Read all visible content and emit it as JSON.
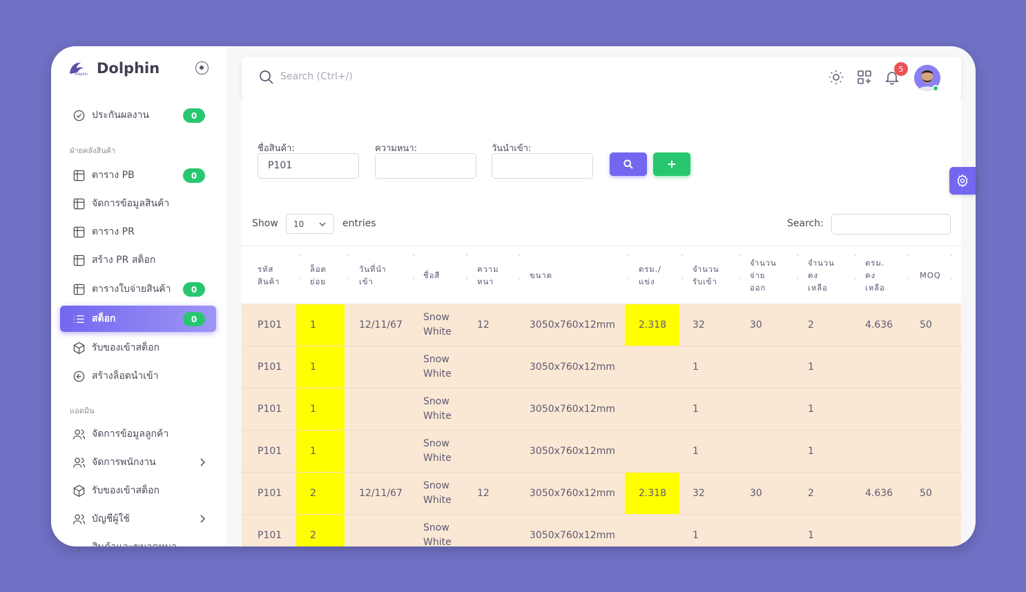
{
  "brand": {
    "name": "Dolphin",
    "logo_text": "Dolphin"
  },
  "sidebar": {
    "items": [
      {
        "label": "ประกันผลงาน",
        "badge": "0",
        "icon": "check-circle-icon"
      },
      {
        "label": "ตาราง PB",
        "badge": "0",
        "icon": "table-icon"
      },
      {
        "label": "จัดการข้อมูลสินค้า",
        "icon": "table-icon"
      },
      {
        "label": "ตาราง PR",
        "icon": "table-icon"
      },
      {
        "label": "สร้าง PR สต็อก",
        "icon": "table-icon"
      },
      {
        "label": "ตารางใบจ่ายสินค้า",
        "badge": "0",
        "icon": "table-icon"
      },
      {
        "label": "สต็อก",
        "badge": "0",
        "icon": "list-icon",
        "active": true
      },
      {
        "label": "รับของเข้าสต็อก",
        "icon": "package-icon"
      },
      {
        "label": "สร้างล็อตนำเข้า",
        "icon": "arrow-left-circle-icon"
      },
      {
        "label": "จัดการข้อมูลลูกค้า",
        "icon": "users-icon"
      },
      {
        "label": "จัดการพนักงาน",
        "icon": "users-icon",
        "chevron": true
      },
      {
        "label": "รับของเข้าสต็อก",
        "icon": "package-icon"
      },
      {
        "label": "บัญชีผู้ใช้",
        "icon": "users-icon",
        "chevron": true
      },
      {
        "label": "สินค้าและขนาดหนา"
      }
    ],
    "sections": {
      "warehouse": "ฝ่ายคลังสินค้า",
      "admin": "แอดมิน"
    }
  },
  "topbar": {
    "search_placeholder": "Search (Ctrl+/)",
    "notification_count": "5"
  },
  "filters": {
    "product_label": "ชื่อสินค้า:",
    "product_value": "P101",
    "thickness_label": "ความหนา:",
    "thickness_value": "",
    "date_label": "วันนำเข้า:",
    "date_value": ""
  },
  "table_controls": {
    "show_label": "Show",
    "page_size": "10",
    "entries_label": "entries",
    "search_label": "Search:"
  },
  "table": {
    "headers": [
      "รหัส\nสินค้า",
      "ล็อต\nย่อย",
      "วันที่นำ\nเข้า",
      "ชื่อสี",
      "ความ\nหนา",
      "ขนาด",
      "ตรม./\nแข่ง",
      "จำนวน\nรับเข้า",
      "จำนวน\nจ่าย\nออก",
      "จำนวน\nคง\nเหลือ",
      "ตรม.\nคง\nเหลือ",
      "MOQ"
    ],
    "rows": [
      [
        "P101",
        "1",
        "12/11/67",
        "Snow\nWhite",
        "12",
        "3050x760x12mm",
        "2.318",
        "32",
        "30",
        "2",
        "4.636",
        "50"
      ],
      [
        "P101",
        "1",
        "",
        "Snow\nWhite",
        "",
        "3050x760x12mm",
        "",
        "1",
        "",
        "1",
        "",
        ""
      ],
      [
        "P101",
        "1",
        "",
        "Snow\nWhite",
        "",
        "3050x760x12mm",
        "",
        "1",
        "",
        "1",
        "",
        ""
      ],
      [
        "P101",
        "1",
        "",
        "Snow\nWhite",
        "",
        "3050x760x12mm",
        "",
        "1",
        "",
        "1",
        "",
        ""
      ],
      [
        "P101",
        "2",
        "12/11/67",
        "Snow\nWhite",
        "12",
        "3050x760x12mm",
        "2.318",
        "32",
        "30",
        "2",
        "4.636",
        "50"
      ],
      [
        "P101",
        "2",
        "",
        "Snow\nWhite",
        "",
        "3050x760x12mm",
        "",
        "1",
        "",
        "1",
        "",
        ""
      ]
    ]
  },
  "colors": {
    "accent": "#7367f0",
    "success": "#28c76f",
    "danger": "#ea5455",
    "row_bg": "#fae8d4",
    "highlight": "#ffff00"
  }
}
